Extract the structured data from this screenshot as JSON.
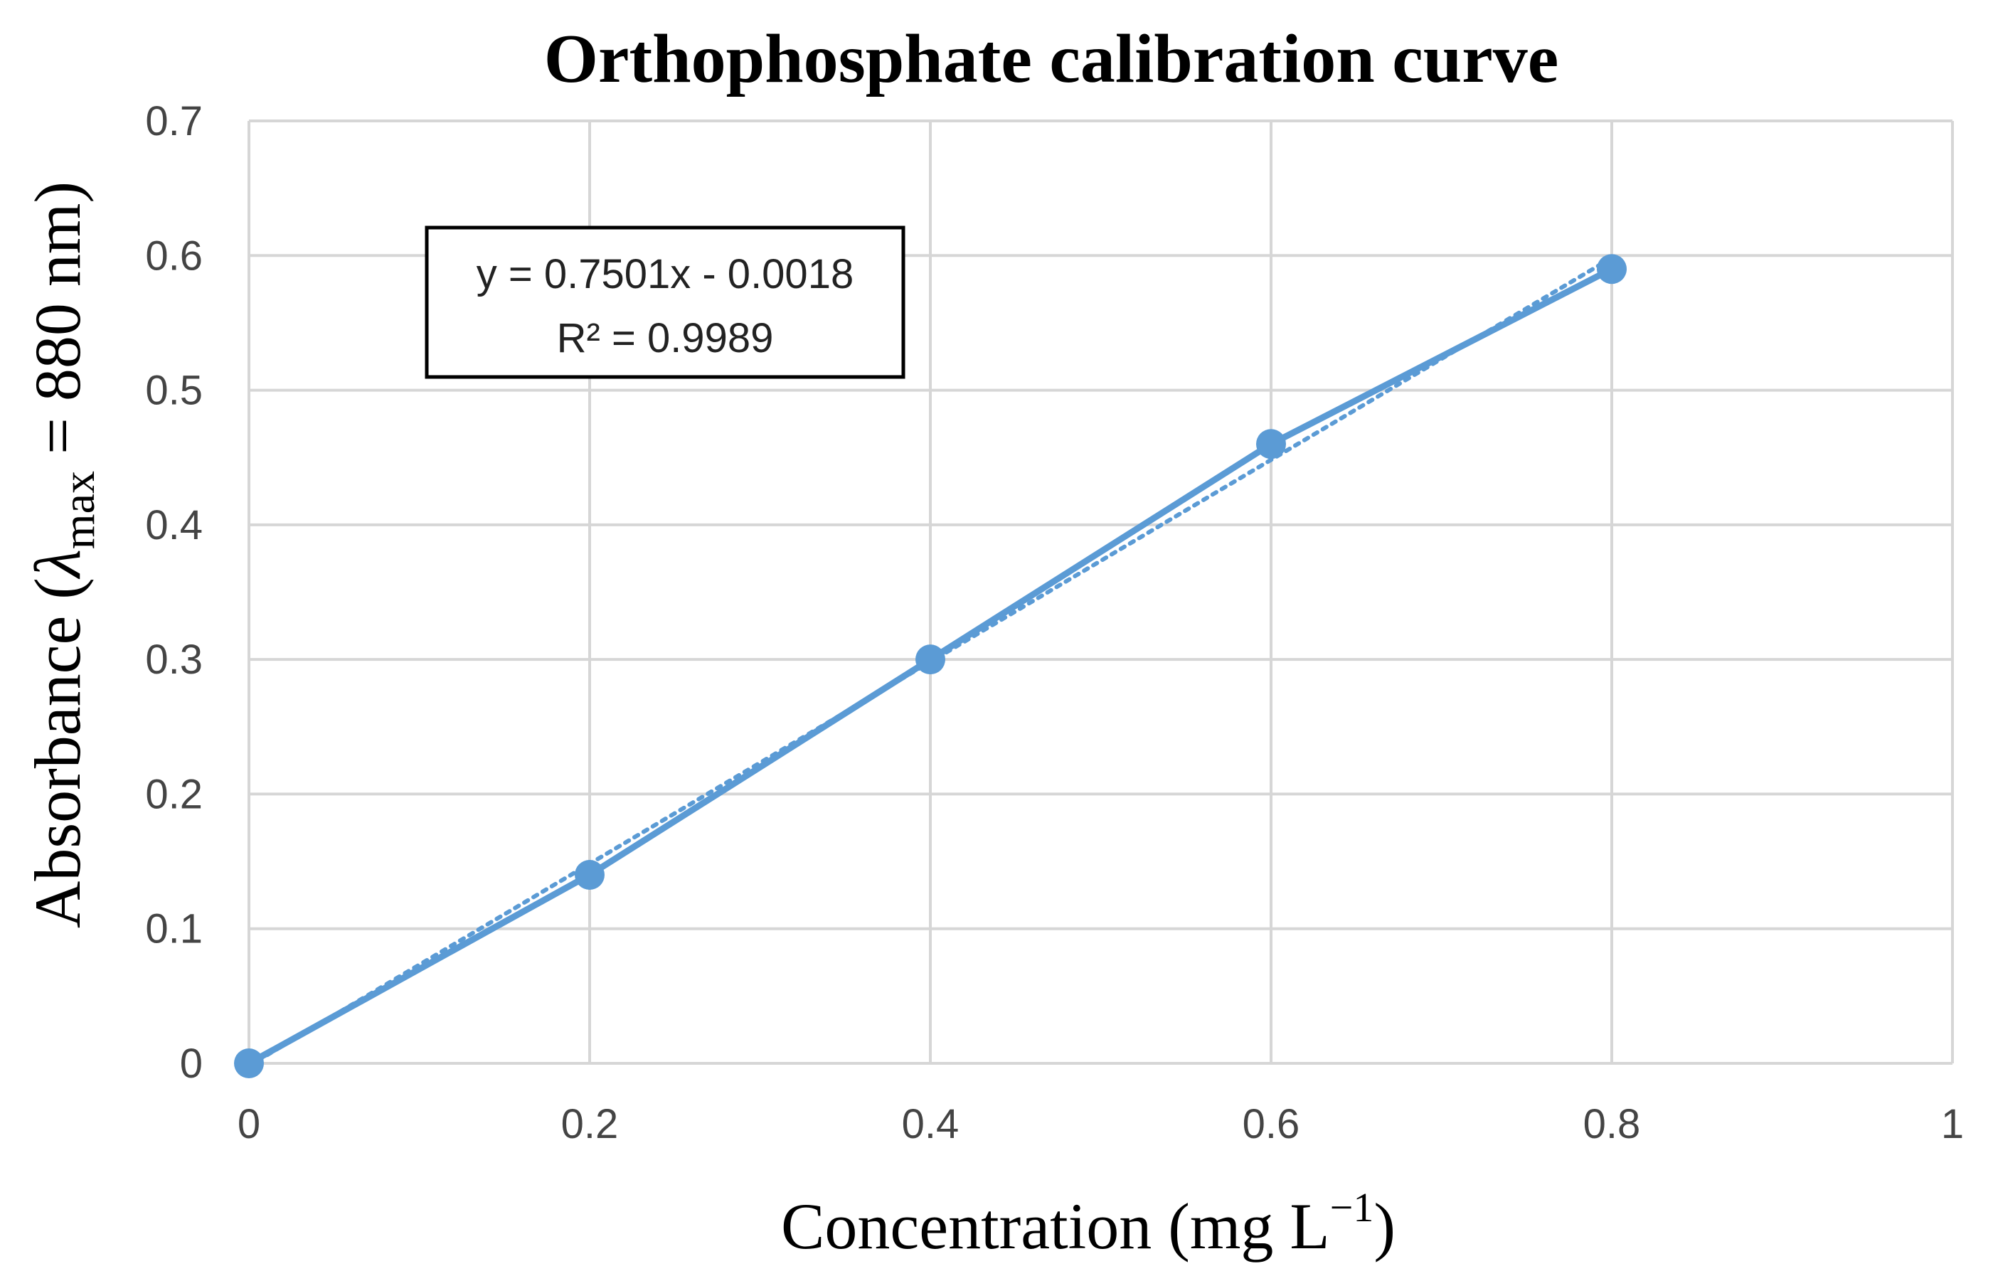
{
  "chart_data": {
    "type": "scatter",
    "title": "Orthophosphate calibration curve",
    "xlabel": {
      "main": "Concentration (mg L",
      "sup": "−1",
      "close": ")"
    },
    "ylabel": {
      "prefix": "Absorbance (",
      "lambda": "λ",
      "sub": "max",
      "suffix": " = 880 nm)"
    },
    "xlim": [
      0,
      1
    ],
    "ylim": [
      0,
      0.7
    ],
    "x_ticks": [
      "0",
      "0.2",
      "0.4",
      "0.6",
      "0.8",
      "1"
    ],
    "y_ticks": [
      "0",
      "0.1",
      "0.2",
      "0.3",
      "0.4",
      "0.5",
      "0.6",
      "0.7"
    ],
    "grid": true,
    "series": [
      {
        "name": "Absorbance",
        "color": "#5b9bd5",
        "x": [
          0,
          0.2,
          0.4,
          0.6,
          0.8
        ],
        "y": [
          0,
          0.14,
          0.3,
          0.46,
          0.59
        ]
      }
    ],
    "trendline": {
      "type": "linear",
      "style": "dotted",
      "color": "#5b9bd5",
      "slope": 0.7501,
      "intercept": -0.0018,
      "equation": "y = 0.7501x - 0.0018",
      "r_squared": "R² = 0.9989"
    }
  }
}
